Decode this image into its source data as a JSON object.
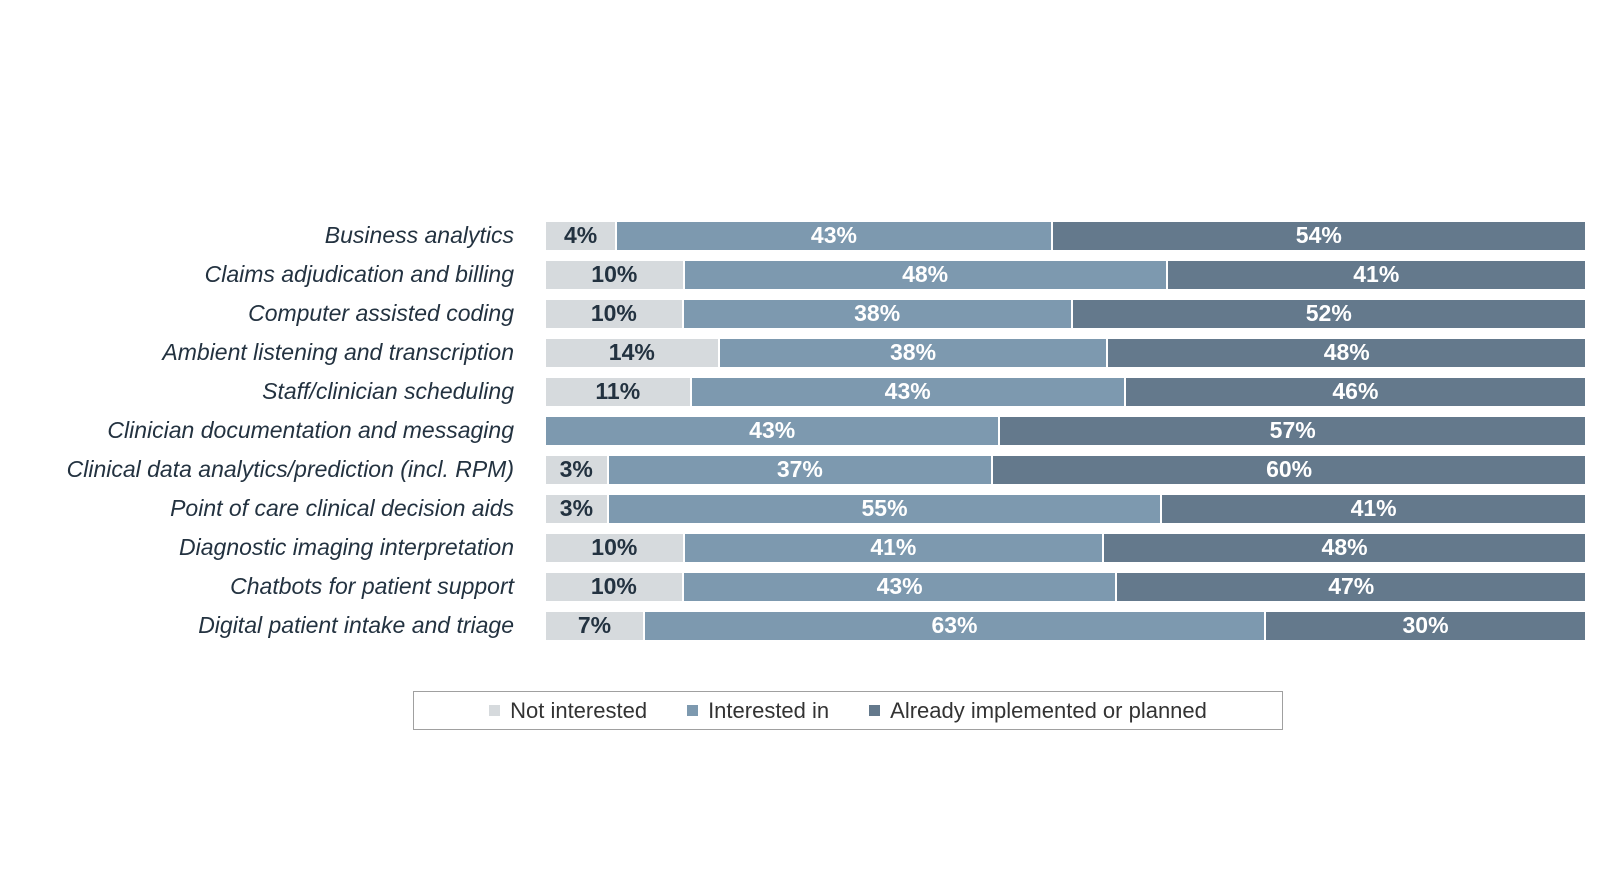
{
  "chart_data": {
    "type": "bar",
    "orientation": "horizontal",
    "stacked": true,
    "title": "",
    "value_suffix": "%",
    "show_segment_labels": true,
    "grid": false,
    "legend_position": "bottom-center",
    "categories": [
      "Business analytics",
      "Claims adjudication and billing",
      "Computer assisted coding",
      "Ambient listening and transcription",
      "Staff/clinician scheduling",
      "Clinician documentation and messaging",
      "Clinical data analytics/prediction (incl. RPM)",
      "Point of care clinical decision aids",
      "Diagnostic imaging interpretation",
      "Chatbots for patient support",
      "Digital patient intake and triage"
    ],
    "series": [
      {
        "name": "Not interested",
        "color": "#d6dadd",
        "label_color": "#233240",
        "values": [
          4,
          10,
          10,
          14,
          11,
          0,
          3,
          3,
          10,
          10,
          7
        ]
      },
      {
        "name": "Interested in",
        "color": "#7d99af",
        "label_color": "#ffffff",
        "values": [
          43,
          48,
          38,
          38,
          43,
          43,
          37,
          55,
          41,
          43,
          63
        ]
      },
      {
        "name": "Already implemented or planned",
        "color": "#64798c",
        "label_color": "#ffffff",
        "values": [
          54,
          41,
          52,
          48,
          46,
          57,
          60,
          41,
          48,
          47,
          30
        ]
      }
    ]
  }
}
